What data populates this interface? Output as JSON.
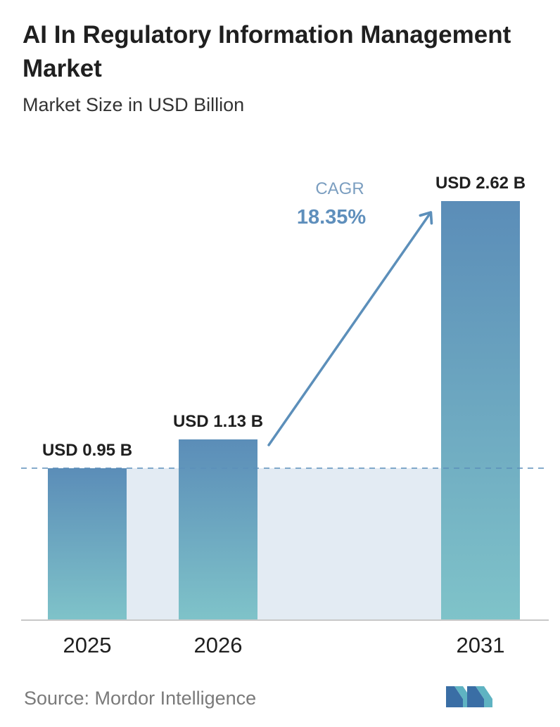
{
  "header": {
    "title": "AI In Regulatory Information Management Market",
    "subtitle": "Market Size in USD Billion"
  },
  "footer": {
    "source": "Source: Mordor Intelligence",
    "logo_icon": "mordor-intelligence-logo-icon"
  },
  "chart_data": {
    "type": "bar",
    "categories": [
      "2025",
      "2026",
      "2031"
    ],
    "values": [
      0.95,
      1.13,
      2.62
    ],
    "data_labels": [
      "USD 0.95 B",
      "USD 1.13 B",
      "USD 2.62 B"
    ],
    "unit": "USD Billion",
    "cagr_label": "CAGR",
    "cagr_value": "18.35%",
    "reference_line_value": 0.95,
    "grid": false,
    "legend": "none",
    "colors": {
      "bar_top": "#5b8db8",
      "bar_bottom": "#7fc3c9",
      "band": "#e3ebf3",
      "arrow": "#5c8fba",
      "cagr_label": "#7b9ec0",
      "cagr_value": "#5f8fbc",
      "axis": "#c8c8c8"
    }
  }
}
